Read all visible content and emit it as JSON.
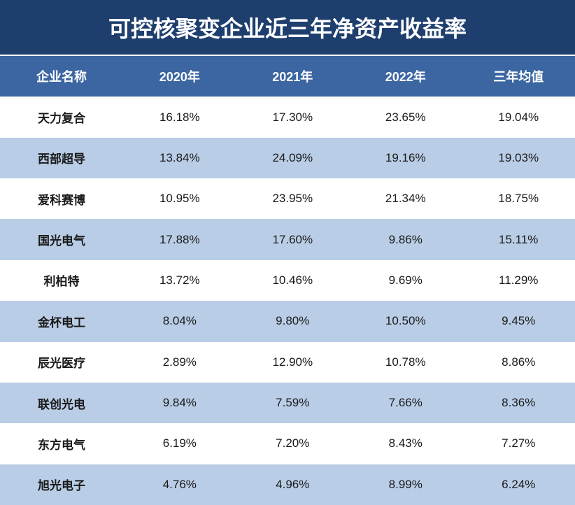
{
  "title": "可控核聚变企业近三年净资产收益率",
  "colors": {
    "title_bg": "#1e3e6e",
    "title_text": "#ffffff",
    "header_bg": "#3b66a2",
    "header_text": "#ffffff",
    "row_odd_bg": "#ffffff",
    "row_even_bg": "#b9cde6",
    "text_color": "#1a1a1a",
    "border_color": "#ffffff"
  },
  "table": {
    "type": "table",
    "columns": [
      "企业名称",
      "2020年",
      "2021年",
      "2022年",
      "三年均值"
    ],
    "rows": [
      {
        "name": "天力复合",
        "y2020": "16.18%",
        "y2021": "17.30%",
        "y2022": "23.65%",
        "avg": "19.04%"
      },
      {
        "name": "西部超导",
        "y2020": "13.84%",
        "y2021": "24.09%",
        "y2022": "19.16%",
        "avg": "19.03%"
      },
      {
        "name": "爱科赛博",
        "y2020": "10.95%",
        "y2021": "23.95%",
        "y2022": "21.34%",
        "avg": "18.75%"
      },
      {
        "name": "国光电气",
        "y2020": "17.88%",
        "y2021": "17.60%",
        "y2022": "9.86%",
        "avg": "15.11%"
      },
      {
        "name": "利柏特",
        "y2020": "13.72%",
        "y2021": "10.46%",
        "y2022": "9.69%",
        "avg": "11.29%"
      },
      {
        "name": "金杯电工",
        "y2020": "8.04%",
        "y2021": "9.80%",
        "y2022": "10.50%",
        "avg": "9.45%"
      },
      {
        "name": "辰光医疗",
        "y2020": "2.89%",
        "y2021": "12.90%",
        "y2022": "10.78%",
        "avg": "8.86%"
      },
      {
        "name": "联创光电",
        "y2020": "9.84%",
        "y2021": "7.59%",
        "y2022": "7.66%",
        "avg": "8.36%"
      },
      {
        "name": "东方电气",
        "y2020": "6.19%",
        "y2021": "7.20%",
        "y2022": "8.43%",
        "avg": "7.27%"
      },
      {
        "name": "旭光电子",
        "y2020": "4.76%",
        "y2021": "4.96%",
        "y2022": "8.99%",
        "avg": "6.24%"
      }
    ]
  }
}
